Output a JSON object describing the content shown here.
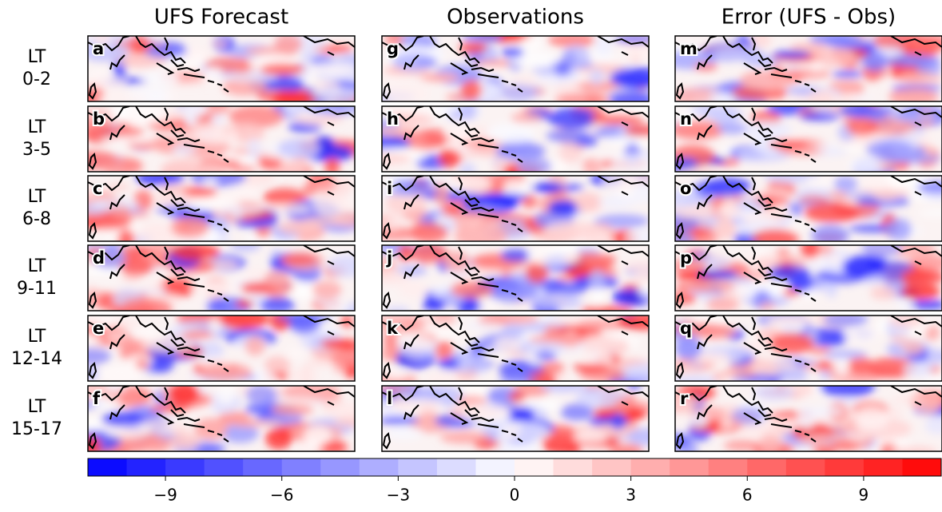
{
  "column_titles": [
    "UFS Forecast",
    "Observations",
    "Error (UFS - Obs)"
  ],
  "row_labels": [
    {
      "line1": "LT",
      "line2": "0-2"
    },
    {
      "line1": "LT",
      "line2": "3-5"
    },
    {
      "line1": "LT",
      "line2": "6-8"
    },
    {
      "line1": "LT",
      "line2": "9-11"
    },
    {
      "line1": "LT",
      "line2": "12-14"
    },
    {
      "line1": "LT",
      "line2": "15-17"
    }
  ],
  "panel_labels": [
    [
      "a",
      "b",
      "c",
      "d",
      "e",
      "f"
    ],
    [
      "g",
      "h",
      "i",
      "j",
      "k",
      "l"
    ],
    [
      "m",
      "n",
      "o",
      "p",
      "q",
      "r"
    ]
  ],
  "colorbar": {
    "colormap": "bwr",
    "xlim": [
      -11,
      11
    ],
    "step": 1,
    "xticks": [
      {
        "value": -9,
        "label": "−9"
      },
      {
        "value": -6,
        "label": "−6"
      },
      {
        "value": -3,
        "label": "−3"
      },
      0,
      3,
      6,
      9
    ]
  }
}
